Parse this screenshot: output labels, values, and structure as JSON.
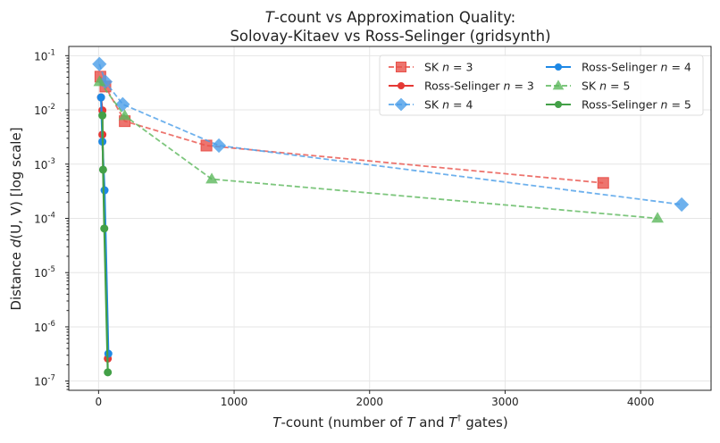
{
  "chart_data": {
    "type": "line",
    "title_line1_italic": "T",
    "title_line1": "-count vs Approximation Quality:",
    "title_line2": "Solovay-Kitaev vs Ross-Selinger (gridsynth)",
    "xlabel": {
      "t1": "T",
      "mid": "-count (number of ",
      "t2": "T",
      "and": " and ",
      "t3": "T",
      "dagger": "†",
      "end": " gates)"
    },
    "ylabel": {
      "pre": "Distance ",
      "func": "d",
      "args": "(U, V)",
      "post": "  [log scale]"
    },
    "xlim": [
      -220,
      4520
    ],
    "ylim": [
      1e-07,
      0.1
    ],
    "yscale": "log",
    "x_ticks": [
      0,
      1000,
      2000,
      3000,
      4000
    ],
    "x_tick_labels": [
      "0",
      "1000",
      "2000",
      "3000",
      "4000"
    ],
    "y_ticks": [
      -7,
      -6,
      -5,
      -4,
      -3,
      -2,
      -1
    ],
    "y_tick_labels": [
      "-7",
      "-6",
      "-5",
      "-4",
      "-3",
      "-2",
      "-1"
    ],
    "y_tick_base": "10",
    "grid": true,
    "legend_placement": "top-right",
    "series": [
      {
        "name": "SK n = 3",
        "label": "SK",
        "n": "n = 3",
        "color": "#e8514a",
        "style": "dashed",
        "marker": "square",
        "x": [
          13,
          50,
          193,
          796,
          3724
        ],
        "y": [
          0.041,
          0.027,
          0.0062,
          0.0022,
          0.00045
        ]
      },
      {
        "name": "Ross-Selinger n = 3",
        "label": "Ross-Selinger",
        "n": "n = 3",
        "color": "#e53935",
        "style": "solid",
        "marker": "circle",
        "x": [
          18,
          28,
          28,
          68
        ],
        "y": [
          0.017,
          0.0098,
          0.0035,
          2.6e-07
        ]
      },
      {
        "name": "SK n = 4",
        "label": "SK",
        "n": "n = 4",
        "color": "#4a9ee8",
        "style": "dashed",
        "marker": "diamond",
        "x": [
          6,
          50,
          178,
          888,
          4303
        ],
        "y": [
          0.07,
          0.033,
          0.0127,
          0.0022,
          0.00018
        ]
      },
      {
        "name": "Ross-Selinger n = 4",
        "label": "Ross-Selinger",
        "n": "n = 4",
        "color": "#1e88e5",
        "style": "solid",
        "marker": "circle",
        "x": [
          18,
          28,
          44,
          72
        ],
        "y": [
          0.017,
          0.0026,
          0.00033,
          3.2e-07
        ]
      },
      {
        "name": "SK n = 5",
        "label": "SK",
        "n": "n = 5",
        "color": "#5cb85c",
        "style": "dashed",
        "marker": "triangle",
        "x": [
          7,
          193,
          835,
          4125
        ],
        "y": [
          0.033,
          0.0078,
          0.00053,
          0.0001
        ]
      },
      {
        "name": "Ross-Selinger n = 5",
        "label": "Ross-Selinger",
        "n": "n = 5",
        "color": "#43a047",
        "style": "solid",
        "marker": "circle",
        "x": [
          28,
          33,
          42,
          68
        ],
        "y": [
          0.0079,
          0.00079,
          6.5e-05,
          1.45e-07
        ]
      }
    ]
  }
}
